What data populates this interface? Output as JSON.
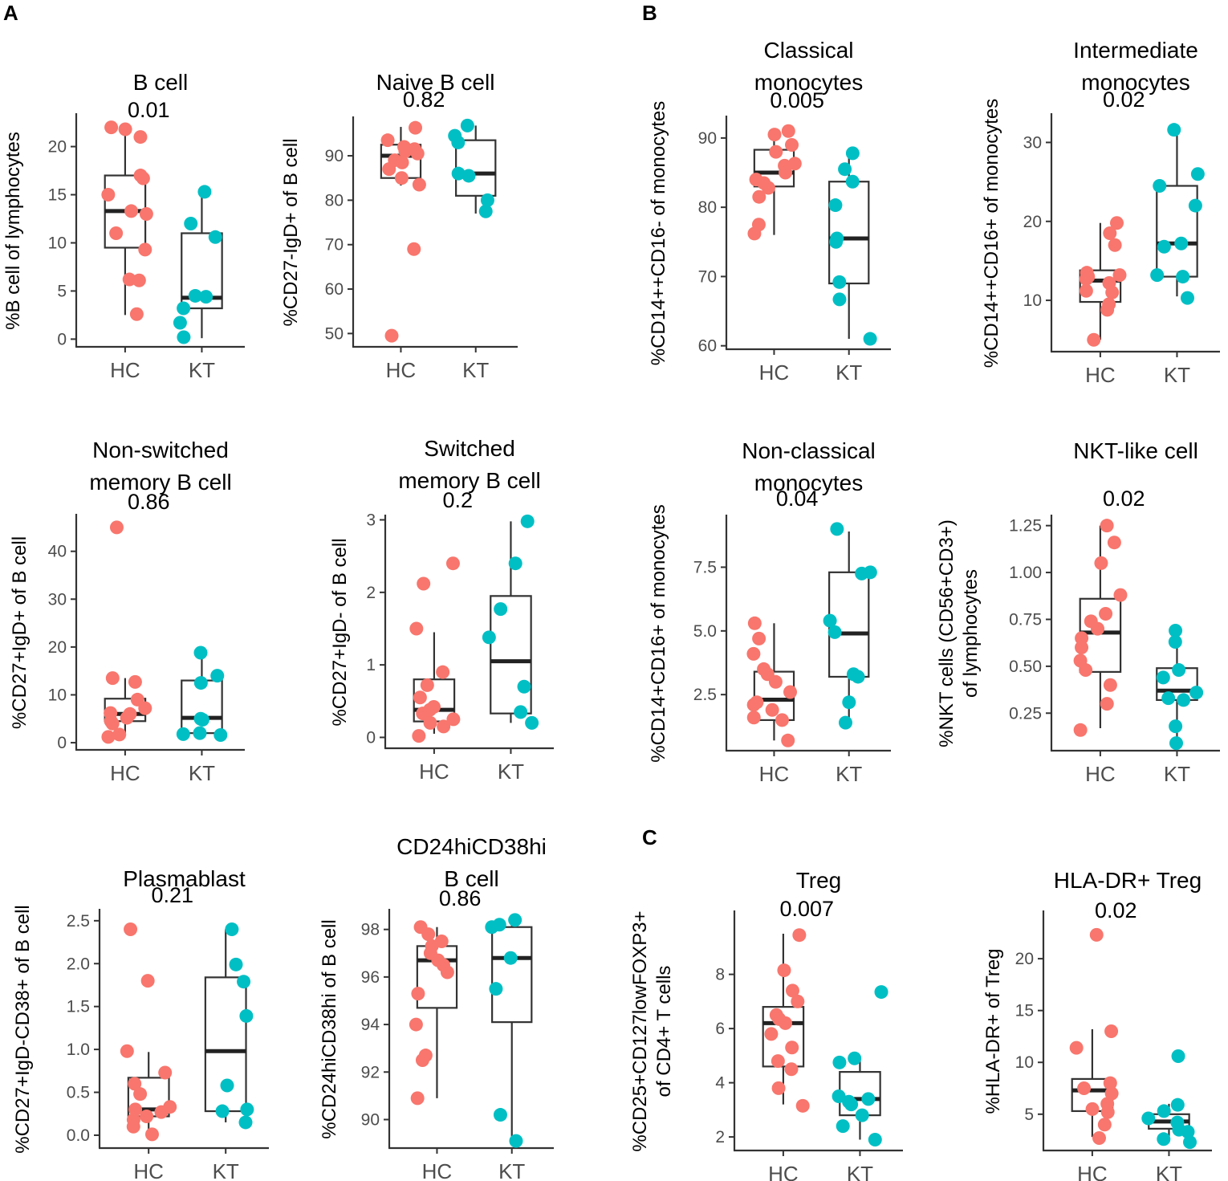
{
  "panel_labels": [
    "A",
    "B",
    "C"
  ],
  "chart_data": [
    {
      "id": "b-cell",
      "type": "boxplot",
      "title": [
        "B cell"
      ],
      "pvalue": "0.01",
      "ylabel": [
        "%B cell of lymphocytes"
      ],
      "categories": [
        "HC",
        "KT"
      ],
      "ylim": [
        -0.8,
        23.3
      ],
      "yticks": [
        0,
        5,
        10,
        15,
        20
      ],
      "ytick_labels": [
        "0",
        "5",
        "10",
        "15",
        "20"
      ],
      "colors": [
        "#F8766D",
        "#00BFC4"
      ],
      "boxes": [
        {
          "q1": 9.5,
          "median": 13.3,
          "q3": 17.0,
          "wlo": 2.5,
          "whi": 22.0
        },
        {
          "q1": 3.2,
          "median": 4.3,
          "q3": 11.0,
          "wlo": 0.1,
          "whi": 15.3
        }
      ],
      "points": [
        [
          22.0,
          21.8,
          21.0,
          17.0,
          16.7,
          15.0,
          13.3,
          13.0,
          11.0,
          9.3,
          6.2,
          6.1,
          2.6
        ],
        [
          15.3,
          12.0,
          10.6,
          4.5,
          4.4,
          3.2,
          1.7,
          0.2
        ]
      ]
    },
    {
      "id": "naive-b-cell",
      "type": "boxplot",
      "title": [
        "Naive B cell"
      ],
      "pvalue": "0.82",
      "ylabel": [
        "%CD27-IgD+ of B cell"
      ],
      "categories": [
        "HC",
        "KT"
      ],
      "ylim": [
        47,
        98.5
      ],
      "yticks": [
        50,
        60,
        70,
        80,
        90
      ],
      "ytick_labels": [
        "50",
        "60",
        "70",
        "80",
        "90"
      ],
      "colors": [
        "#F8766D",
        "#00BFC4"
      ],
      "boxes": [
        {
          "q1": 85.0,
          "median": 90.0,
          "q3": 92.5,
          "wlo": 83.3,
          "whi": 96.5
        },
        {
          "q1": 81.0,
          "median": 86.0,
          "q3": 93.5,
          "wlo": 77.0,
          "whi": 96.8
        }
      ],
      "points": [
        [
          96.3,
          93.5,
          92.0,
          91.5,
          91.0,
          90.5,
          89.0,
          88.5,
          87.0,
          85.0,
          83.5,
          69.0,
          49.5
        ],
        [
          96.8,
          94.5,
          93.0,
          86.0,
          85.5,
          80.0,
          77.5
        ]
      ]
    },
    {
      "id": "classical-monocytes",
      "type": "boxplot",
      "title": [
        "Classical",
        "monocytes"
      ],
      "pvalue": "0.005",
      "ylabel": [
        "%CD14++CD16- of monocytes"
      ],
      "categories": [
        "HC",
        "KT"
      ],
      "ylim": [
        59.5,
        93
      ],
      "yticks": [
        60,
        70,
        80,
        90
      ],
      "ytick_labels": [
        "60",
        "70",
        "80",
        "90"
      ],
      "colors": [
        "#F8766D",
        "#00BFC4"
      ],
      "boxes": [
        {
          "q1": 83.0,
          "median": 85.0,
          "q3": 88.3,
          "wlo": 76.0,
          "whi": 91.0
        },
        {
          "q1": 69.0,
          "median": 75.5,
          "q3": 83.7,
          "wlo": 61.0,
          "whi": 87.5
        }
      ],
      "points": [
        [
          91.0,
          90.5,
          89.0,
          88.0,
          86.3,
          86.0,
          85.0,
          84.0,
          83.5,
          82.8,
          81.5,
          77.5,
          76.2
        ],
        [
          87.8,
          85.5,
          83.7,
          80.3,
          75.5,
          75.0,
          69.2,
          66.7,
          61.0
        ]
      ]
    },
    {
      "id": "intermediate-monocytes",
      "type": "boxplot",
      "title": [
        "Intermediate",
        "monocytes"
      ],
      "pvalue": "0.02",
      "ylabel": [
        "%CD14++CD16+ of monocytes"
      ],
      "categories": [
        "HC",
        "KT"
      ],
      "ylim": [
        3.5,
        33.5
      ],
      "yticks": [
        10,
        20,
        30
      ],
      "ytick_labels": [
        "10",
        "20",
        "30"
      ],
      "colors": [
        "#F8766D",
        "#00BFC4"
      ],
      "boxes": [
        {
          "q1": 9.8,
          "median": 12.5,
          "q3": 13.8,
          "wlo": 5.0,
          "whi": 19.8
        },
        {
          "q1": 13.0,
          "median": 17.2,
          "q3": 24.5,
          "wlo": 10.5,
          "whi": 31.5
        }
      ],
      "points": [
        [
          19.8,
          18.5,
          17.0,
          13.5,
          13.2,
          13.0,
          12.7,
          12.2,
          11.2,
          11.0,
          9.5,
          8.8,
          5.0
        ],
        [
          31.6,
          26.0,
          24.5,
          22.0,
          17.2,
          16.8,
          13.2,
          13.0,
          10.3
        ]
      ]
    },
    {
      "id": "non-switched-memory-b-cell",
      "type": "boxplot",
      "title": [
        "Non-switched",
        "memory B cell"
      ],
      "pvalue": "0.86",
      "ylabel": [
        "%CD27+IgD+ of B cell"
      ],
      "categories": [
        "HC",
        "KT"
      ],
      "ylim": [
        -1.5,
        47.5
      ],
      "yticks": [
        0,
        10,
        20,
        30,
        40
      ],
      "ytick_labels": [
        "0",
        "10",
        "20",
        "30",
        "40"
      ],
      "colors": [
        "#F8766D",
        "#00BFC4"
      ],
      "boxes": [
        {
          "q1": 4.5,
          "median": 6.0,
          "q3": 9.2,
          "wlo": 1.5,
          "whi": 13.5
        },
        {
          "q1": 2.0,
          "median": 5.2,
          "q3": 13.0,
          "wlo": 1.5,
          "whi": 18.8
        }
      ],
      "points": [
        [
          45.0,
          13.5,
          12.7,
          9.0,
          7.2,
          6.2,
          6.0,
          5.2,
          4.5,
          4.0,
          1.7,
          1.2
        ],
        [
          18.8,
          14.0,
          12.5,
          5.0,
          4.8,
          2.0,
          1.8,
          1.6
        ]
      ]
    },
    {
      "id": "switched-memory-b-cell",
      "type": "boxplot",
      "title": [
        "Switched",
        "memory B cell"
      ],
      "pvalue": "0.2",
      "ylabel": [
        "%CD27+IgD- of B cell"
      ],
      "categories": [
        "HC",
        "KT"
      ],
      "ylim": [
        -0.15,
        3.05
      ],
      "yticks": [
        0,
        1,
        2,
        3
      ],
      "ytick_labels": [
        "0",
        "1",
        "2",
        "3"
      ],
      "colors": [
        "#F8766D",
        "#00BFC4"
      ],
      "boxes": [
        {
          "q1": 0.22,
          "median": 0.38,
          "q3": 0.8,
          "wlo": 0.05,
          "whi": 1.45
        },
        {
          "q1": 0.33,
          "median": 1.05,
          "q3": 1.95,
          "wlo": 0.2,
          "whi": 2.98
        }
      ],
      "points": [
        [
          2.4,
          2.12,
          1.5,
          0.9,
          0.72,
          0.55,
          0.42,
          0.38,
          0.33,
          0.25,
          0.2,
          0.15,
          0.02
        ],
        [
          2.98,
          2.4,
          1.77,
          1.38,
          0.7,
          0.35,
          0.2
        ]
      ]
    },
    {
      "id": "non-classical-monocytes",
      "type": "boxplot",
      "title": [
        "Non-classical",
        "monocytes"
      ],
      "pvalue": "0.04",
      "ylabel": [
        "%CD14+CD16+ of monocytes"
      ],
      "categories": [
        "HC",
        "KT"
      ],
      "ylim": [
        0.3,
        9.5
      ],
      "yticks": [
        2.5,
        5.0,
        7.5
      ],
      "ytick_labels": [
        "2.5",
        "5.0",
        "7.5"
      ],
      "colors": [
        "#F8766D",
        "#00BFC4"
      ],
      "boxes": [
        {
          "q1": 1.5,
          "median": 2.3,
          "q3": 3.4,
          "wlo": 0.7,
          "whi": 5.3
        },
        {
          "q1": 3.2,
          "median": 4.9,
          "q3": 7.3,
          "wlo": 1.3,
          "whi": 8.9
        }
      ],
      "points": [
        [
          5.3,
          4.7,
          4.1,
          3.5,
          3.3,
          3.0,
          2.6,
          2.2,
          2.1,
          1.9,
          1.6,
          1.5,
          0.7
        ],
        [
          9.0,
          7.3,
          7.25,
          5.4,
          4.95,
          3.3,
          3.2,
          2.2,
          1.4
        ]
      ]
    },
    {
      "id": "nkt-like-cell",
      "type": "boxplot",
      "title": [
        "NKT-like cell"
      ],
      "pvalue": "0.02",
      "ylabel": [
        "%NKT cells (CD56+CD3+)",
        "of lymphocytes"
      ],
      "categories": [
        "HC",
        "KT"
      ],
      "ylim": [
        0.05,
        1.3
      ],
      "yticks": [
        0.25,
        0.5,
        0.75,
        1.0,
        1.25
      ],
      "ytick_labels": [
        "0.25",
        "0.50",
        "0.75",
        "1.00",
        "1.25"
      ],
      "colors": [
        "#F8766D",
        "#00BFC4"
      ],
      "boxes": [
        {
          "q1": 0.47,
          "median": 0.68,
          "q3": 0.86,
          "wlo": 0.17,
          "whi": 1.25
        },
        {
          "q1": 0.32,
          "median": 0.37,
          "q3": 0.49,
          "wlo": 0.1,
          "whi": 0.7
        }
      ],
      "points": [
        [
          1.25,
          1.16,
          1.05,
          0.88,
          0.78,
          0.74,
          0.7,
          0.65,
          0.6,
          0.53,
          0.48,
          0.4,
          0.3,
          0.16
        ],
        [
          0.69,
          0.63,
          0.48,
          0.44,
          0.36,
          0.33,
          0.32,
          0.18,
          0.09
        ]
      ]
    },
    {
      "id": "plasmablast",
      "type": "boxplot",
      "title": [
        "Plasmablast"
      ],
      "pvalue": "0.21",
      "ylabel": [
        "%CD27+IgD-CD38+ of B cell"
      ],
      "categories": [
        "HC",
        "KT"
      ],
      "ylim": [
        -0.15,
        2.62
      ],
      "yticks": [
        0,
        0.5,
        1.0,
        1.5,
        2.0,
        2.5
      ],
      "ytick_labels": [
        "0.0",
        "0.5",
        "1.0",
        "1.5",
        "2.0",
        "2.5"
      ],
      "colors": [
        "#F8766D",
        "#00BFC4"
      ],
      "boxes": [
        {
          "q1": 0.22,
          "median": 0.3,
          "q3": 0.67,
          "wlo": 0.0,
          "whi": 0.97
        },
        {
          "q1": 0.28,
          "median": 0.98,
          "q3": 1.84,
          "wlo": 0.15,
          "whi": 2.4
        }
      ],
      "points": [
        [
          2.4,
          1.8,
          0.98,
          0.73,
          0.6,
          0.48,
          0.33,
          0.3,
          0.27,
          0.22,
          0.18,
          0.1,
          0.01
        ],
        [
          2.4,
          1.99,
          1.79,
          1.39,
          0.58,
          0.3,
          0.28,
          0.15
        ]
      ]
    },
    {
      "id": "cd24hicd38hi-b-cell",
      "type": "boxplot",
      "title": [
        "CD24hiCD38hi",
        "B cell"
      ],
      "pvalue": "0.86",
      "ylabel": [
        "%CD24hiCD38hi of B cell"
      ],
      "categories": [
        "HC",
        "KT"
      ],
      "ylim": [
        88.8,
        98.8
      ],
      "yticks": [
        90,
        92,
        94,
        96,
        98
      ],
      "ytick_labels": [
        "90",
        "92",
        "94",
        "96",
        "98"
      ],
      "colors": [
        "#F8766D",
        "#00BFC4"
      ],
      "boxes": [
        {
          "q1": 94.7,
          "median": 96.7,
          "q3": 97.3,
          "wlo": 90.9,
          "whi": 98.1
        },
        {
          "q1": 94.1,
          "median": 96.8,
          "q3": 98.1,
          "wlo": 89.1,
          "whi": 98.3
        }
      ],
      "points": [
        [
          98.1,
          97.8,
          97.5,
          97.3,
          97.0,
          96.7,
          96.5,
          96.2,
          95.3,
          94.0,
          92.7,
          92.5,
          90.9
        ],
        [
          98.4,
          98.2,
          98.1,
          96.8,
          95.5,
          90.2,
          89.1
        ]
      ]
    },
    {
      "id": "treg",
      "type": "boxplot",
      "title": [
        "Treg"
      ],
      "pvalue": "0.007",
      "ylabel": [
        "%CD25+CD127lowFOXP3+",
        "of CD4+ T cells"
      ],
      "categories": [
        "HC",
        "KT"
      ],
      "ylim": [
        1.5,
        10.3
      ],
      "yticks": [
        2,
        4,
        6,
        8
      ],
      "ytick_labels": [
        "2",
        "4",
        "6",
        "8"
      ],
      "colors": [
        "#F8766D",
        "#00BFC4"
      ],
      "boxes": [
        {
          "q1": 4.6,
          "median": 6.2,
          "q3": 6.8,
          "wlo": 3.2,
          "whi": 9.5
        },
        {
          "q1": 2.8,
          "median": 3.4,
          "q3": 4.4,
          "wlo": 1.9,
          "whi": 4.9
        }
      ],
      "points": [
        [
          9.45,
          8.15,
          7.4,
          7.0,
          6.5,
          6.35,
          6.2,
          5.8,
          5.3,
          4.8,
          4.5,
          3.8,
          3.15
        ],
        [
          7.35,
          4.9,
          4.75,
          3.5,
          3.4,
          3.3,
          3.2,
          2.8,
          2.4,
          1.9
        ]
      ]
    },
    {
      "id": "hla-dr-treg",
      "type": "boxplot",
      "title": [
        "HLA-DR+ Treg"
      ],
      "pvalue": "0.02",
      "ylabel": [
        "%HLA-DR+ of Treg"
      ],
      "categories": [
        "HC",
        "KT"
      ],
      "ylim": [
        1.5,
        24.5
      ],
      "yticks": [
        5,
        10,
        15,
        20
      ],
      "ytick_labels": [
        "5",
        "10",
        "15",
        "20"
      ],
      "colors": [
        "#F8766D",
        "#00BFC4"
      ],
      "boxes": [
        {
          "q1": 5.3,
          "median": 7.3,
          "q3": 8.4,
          "wlo": 2.8,
          "whi": 13.2
        },
        {
          "q1": 3.6,
          "median": 4.3,
          "q3": 5.0,
          "wlo": 2.3,
          "whi": 6.0
        }
      ],
      "points": [
        [
          22.3,
          13.0,
          11.4,
          8.0,
          7.5,
          7.0,
          6.0,
          5.5,
          5.2,
          4.0,
          2.7
        ],
        [
          10.6,
          5.9,
          5.3,
          4.6,
          4.2,
          3.5,
          3.3,
          2.6,
          2.3
        ]
      ]
    }
  ]
}
